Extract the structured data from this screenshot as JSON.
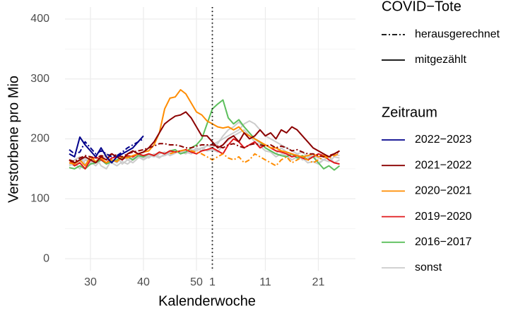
{
  "chart_data": {
    "type": "line",
    "x_label": "Kalenderwoche",
    "y_label": "Verstorbene pro Mio",
    "categories": [
      null,
      null,
      null,
      null,
      "30",
      null,
      null,
      null,
      null,
      null,
      null,
      null,
      null,
      null,
      "40",
      null,
      null,
      null,
      null,
      null,
      null,
      null,
      null,
      null,
      "50",
      null,
      null,
      "1",
      null,
      null,
      null,
      null,
      null,
      null,
      null,
      null,
      null,
      "11",
      null,
      null,
      null,
      null,
      null,
      null,
      null,
      null,
      null,
      "21",
      null,
      null,
      null,
      null
    ],
    "ylim": [
      -20,
      420
    ],
    "yticks": [
      0,
      100,
      200,
      300,
      400
    ],
    "grid": true,
    "reference_line": {
      "category": "1",
      "style": "dotted"
    },
    "linetype_title": "COVID−Tote",
    "linetypes": [
      {
        "name": "herausgerechnet",
        "dash": "dashdot"
      },
      {
        "name": "mitgezählt",
        "dash": "solid"
      }
    ],
    "color_title": "Zeitraum",
    "series": [
      {
        "name": "2022−2023",
        "color": "#00008b",
        "lines": [
          {
            "linetype": 1,
            "values": [
              175,
              170,
              203,
              190,
              180,
              170,
              185,
              170,
              160,
              170,
              175,
              180,
              185,
              195,
              205,
              null,
              null,
              null,
              null,
              null,
              null,
              null,
              null,
              null,
              null,
              null,
              null,
              null,
              null,
              null,
              null,
              null,
              null,
              null,
              null,
              null,
              null,
              null,
              null,
              null,
              null,
              null,
              null,
              null,
              null,
              null,
              null,
              null,
              null,
              null,
              null,
              null
            ]
          },
          {
            "linetype": 0,
            "values": [
              182,
              175,
              178,
              195,
              185,
              175,
              180,
              175,
              170,
              172,
              178,
              185,
              190,
              195,
              200,
              null,
              null,
              null,
              null,
              null,
              null,
              null,
              null,
              null,
              null,
              null,
              null,
              null,
              null,
              null,
              null,
              null,
              null,
              null,
              null,
              null,
              null,
              null,
              null,
              null,
              null,
              null,
              null,
              null,
              null,
              null,
              null,
              null,
              null,
              null,
              null,
              null
            ]
          }
        ]
      },
      {
        "name": "2021−2022",
        "color": "#8b0000",
        "lines": [
          {
            "linetype": 1,
            "values": [
              165,
              160,
              165,
              170,
              165,
              160,
              170,
              165,
              175,
              170,
              165,
              175,
              180,
              175,
              178,
              185,
              195,
              210,
              225,
              232,
              238,
              240,
              245,
              235,
              220,
              205,
              205,
              195,
              185,
              190,
              200,
              205,
              195,
              210,
              200,
              205,
              215,
              205,
              210,
              200,
              215,
              210,
              220,
              215,
              205,
              195,
              185,
              180,
              175,
              170,
              175,
              180
            ]
          },
          {
            "linetype": 0,
            "values": [
              165,
              162,
              168,
              172,
              170,
              168,
              172,
              170,
              175,
              172,
              170,
              175,
              178,
              180,
              182,
              185,
              188,
              192,
              192,
              190,
              190,
              188,
              185,
              185,
              188,
              190,
              190,
              190,
              188,
              185,
              190,
              192,
              188,
              185,
              190,
              192,
              190,
              188,
              190,
              185,
              188,
              185,
              180,
              182,
              178,
              175,
              175,
              172,
              170,
              172,
              175,
              178
            ]
          }
        ]
      },
      {
        "name": "2020−2021",
        "color": "#ff8c00",
        "lines": [
          {
            "linetype": 1,
            "values": [
              160,
              158,
              165,
              155,
              170,
              162,
              168,
              160,
              165,
              162,
              170,
              168,
              172,
              175,
              178,
              180,
              190,
              210,
              250,
              268,
              270,
              282,
              275,
              260,
              245,
              240,
              230,
              225,
              220,
              218,
              220,
              215,
              220,
              210,
              205,
              200,
              195,
              190,
              185,
              185,
              180,
              178,
              175,
              172,
              170,
              172,
              175,
              170,
              172,
              170,
              175,
              180
            ]
          },
          {
            "linetype": 0,
            "values": [
              null,
              null,
              null,
              null,
              null,
              null,
              null,
              null,
              null,
              null,
              null,
              null,
              null,
              null,
              null,
              null,
              null,
              null,
              null,
              175,
              178,
              180,
              182,
              180,
              178,
              175,
              170,
              165,
              170,
              175,
              168,
              165,
              170,
              160,
              165,
              175,
              170,
              165,
              160,
              155,
              165,
              170,
              160,
              165,
              170,
              165,
              160,
              165,
              170,
              168,
              172,
              175
            ]
          }
        ]
      },
      {
        "name": "2019−2020",
        "color": "#e0191c",
        "lines": [
          {
            "linetype": 1,
            "values": [
              165,
              155,
              160,
              150,
              165,
              170,
              165,
              160,
              168,
              170,
              165,
              172,
              170,
              175,
              172,
              175,
              172,
              178,
              175,
              180,
              178,
              180,
              182,
              178,
              175,
              180,
              182,
              185,
              180,
              175,
              190,
              200,
              195,
              185,
              190,
              195,
              185,
              190,
              185,
              180,
              178,
              175,
              170,
              172,
              168,
              165,
              170,
              175,
              172,
              165,
              160,
              158
            ]
          }
        ]
      },
      {
        "name": "2016−2017",
        "color": "#5cbf5c",
        "lines": [
          {
            "linetype": 1,
            "values": [
              152,
              150,
              155,
              150,
              158,
              160,
              165,
              158,
              162,
              165,
              168,
              170,
              165,
              172,
              170,
              175,
              172,
              178,
              175,
              180,
              182,
              175,
              178,
              185,
              190,
              200,
              225,
              250,
              258,
              265,
              235,
              225,
              232,
              220,
              210,
              200,
              195,
              185,
              180,
              175,
              172,
              170,
              175,
              168,
              172,
              165,
              170,
              160,
              150,
              155,
              148,
              155
            ]
          }
        ]
      },
      {
        "name": "sonst",
        "color": "#cccccc",
        "lines": [
          {
            "linetype": 1,
            "values": [
              160,
              165,
              170,
              158,
              162,
              155,
              165,
              175,
              160,
              170,
              158,
              165,
              168,
              170,
              165,
              170,
              172,
              168,
              175,
              178,
              180,
              178,
              175,
              182,
              180,
              185,
              188,
              190,
              195,
              200,
              205,
              210,
              215,
              225,
              230,
              225,
              215,
              205,
              200,
              195,
              190,
              185,
              180,
              175,
              178,
              170,
              172,
              168,
              165,
              170,
              175,
              172
            ]
          },
          {
            "linetype": 1,
            "values": [
              155,
              160,
              150,
              165,
              160,
              170,
              155,
              150,
              165,
              160,
              170,
              165,
              160,
              168,
              172,
              168,
              175,
              170,
              172,
              176,
              180,
              175,
              182,
              178,
              185,
              180,
              190,
              185,
              192,
              205,
              215,
              220,
              228,
              220,
              210,
              200,
              192,
              185,
              180,
              175,
              185,
              178,
              170,
              175,
              165,
              168,
              172,
              160,
              165,
              162,
              170,
              168
            ]
          },
          {
            "linetype": 1,
            "values": [
              158,
              155,
              162,
              168,
              158,
              162,
              170,
              165,
              160,
              155,
              162,
              158,
              165,
              170,
              168,
              172,
              170,
              175,
              178,
              172,
              176,
              180,
              178,
              175,
              182,
              185,
              180,
              182,
              178,
              190,
              198,
              205,
              210,
              215,
              205,
              195,
              188,
              180,
              178,
              170,
              175,
              172,
              165,
              170,
              168,
              160,
              162,
              158,
              165,
              170,
              160,
              165
            ]
          }
        ]
      }
    ]
  }
}
